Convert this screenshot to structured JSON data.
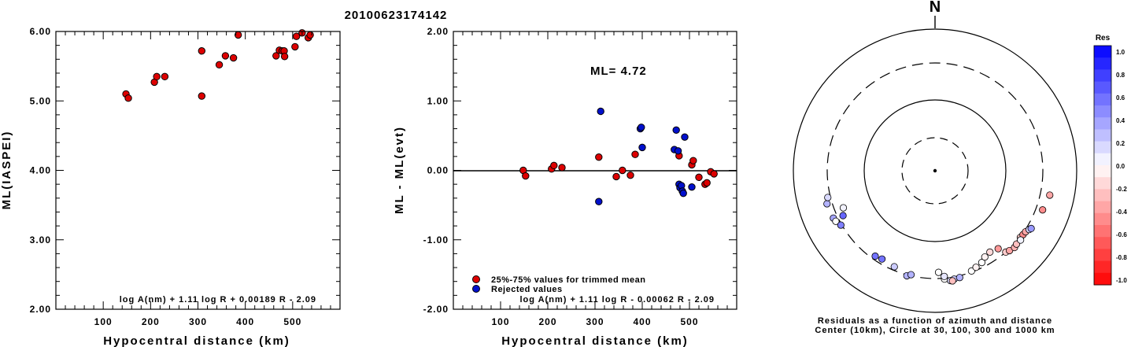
{
  "figure_title": "20100623174142",
  "colors": {
    "accepted": "#dd0000",
    "rejected": "#0010cc",
    "res_positive": "#0000ff",
    "res_negative": "#ff0000"
  },
  "chart_data": [
    {
      "type": "scatter",
      "name": "ML(IASPEI) vs distance",
      "xlabel": "Hypocentral distance (km)",
      "ylabel": "ML(IASPEI)",
      "xlim": [
        0,
        600
      ],
      "ylim": [
        2.0,
        6.0
      ],
      "xticks": [
        "100",
        "200",
        "300",
        "400",
        "500"
      ],
      "yticks": [
        "2.00",
        "3.00",
        "4.00",
        "5.00",
        "6.00"
      ],
      "formula": "log A(nm) + 1.11 log R + 0.00189 R - 2.09",
      "grid": false,
      "series": [
        {
          "color": "accepted",
          "x": [
            148,
            153,
            208,
            213,
            230,
            308,
            308,
            345,
            358,
            375,
            385,
            465,
            472,
            478,
            482,
            483,
            505,
            508,
            520,
            533,
            537
          ],
          "y": [
            5.1,
            5.04,
            5.27,
            5.35,
            5.35,
            5.72,
            5.07,
            5.52,
            5.65,
            5.62,
            5.95,
            5.65,
            5.73,
            5.72,
            5.72,
            5.64,
            5.78,
            5.93,
            5.98,
            5.91,
            5.95
          ]
        }
      ]
    },
    {
      "type": "scatter",
      "name": "Residuals vs distance",
      "xlabel": "Hypocentral distance (km)",
      "ylabel": "ML - ML(evt)",
      "xlim": [
        0,
        600
      ],
      "ylim": [
        -2.0,
        2.0
      ],
      "xticks": [
        "100",
        "200",
        "300",
        "400",
        "500"
      ],
      "yticks": [
        "-2.00",
        "-1.00",
        "0.00",
        "1.00",
        "2.00"
      ],
      "annotation": "ML= 4.72",
      "formula": "log A(nm) + 1.11 log R - 0.00062 R - 2.09",
      "legend": [
        "25%-75% values for trimmed mean",
        "Rejected values"
      ],
      "legend_position": "bottom-left",
      "series": [
        {
          "label_index": 0,
          "color": "accepted",
          "x": [
            148,
            153,
            208,
            213,
            230,
            308,
            345,
            358,
            375,
            385,
            478,
            505,
            508,
            520,
            533,
            537,
            545,
            552
          ],
          "y": [
            0.0,
            -0.08,
            0.02,
            0.07,
            0.04,
            0.19,
            -0.09,
            0.0,
            -0.07,
            0.23,
            0.21,
            0.08,
            0.14,
            -0.1,
            -0.2,
            -0.18,
            -0.02,
            -0.05
          ]
        },
        {
          "label_index": 1,
          "color": "rejected",
          "x": [
            308,
            312,
            396,
            398,
            400,
            468,
            472,
            476,
            478,
            480,
            483,
            485,
            487,
            490,
            505
          ],
          "y": [
            -0.45,
            0.85,
            0.6,
            0.62,
            0.33,
            0.3,
            0.58,
            0.28,
            -0.2,
            -0.25,
            -0.22,
            -0.3,
            -0.33,
            0.48,
            -0.24
          ]
        }
      ]
    },
    {
      "type": "scatter",
      "name": "Residuals by azimuth and distance",
      "north_label": "N",
      "caption_line1": "Residuals as a function of azimuth and distance",
      "caption_line2": "Center (10km), Circle at 30, 100, 300 and 1000 km",
      "rings_km": [
        30,
        100,
        300,
        1000
      ],
      "colorbar_title": "Res",
      "colorbar_ticks": [
        "1.0",
        "0.8",
        "0.6",
        "0.4",
        "0.2",
        "0.0",
        "-0.2",
        "-0.4",
        "-0.6",
        "-0.8",
        "-1.0"
      ],
      "stations": [
        {
          "az": 253,
          "dist": 360,
          "res": 0.3
        },
        {
          "az": 256,
          "dist": 330,
          "res": 0.15
        },
        {
          "az": 245,
          "dist": 350,
          "res": 0.35
        },
        {
          "az": 243,
          "dist": 340,
          "res": 0.0
        },
        {
          "az": 240,
          "dist": 310,
          "res": 0.5
        },
        {
          "az": 244,
          "dist": 255,
          "res": 0.6
        },
        {
          "az": 248,
          "dist": 230,
          "res": 0.05
        },
        {
          "az": 102,
          "dist": 420,
          "res": -0.35
        },
        {
          "az": 110,
          "dist": 380,
          "res": -0.45
        },
        {
          "az": 215,
          "dist": 270,
          "res": 0.55
        },
        {
          "az": 211,
          "dist": 260,
          "res": 0.55
        },
        {
          "az": 203,
          "dist": 270,
          "res": 0.2
        },
        {
          "az": 195,
          "dist": 310,
          "res": 0.3
        },
        {
          "az": 193,
          "dist": 290,
          "res": 0.3
        },
        {
          "az": 178,
          "dist": 250,
          "res": 0.0
        },
        {
          "az": 175,
          "dist": 310,
          "res": 0.0
        },
        {
          "az": 170,
          "dist": 325,
          "res": 0.2
        },
        {
          "az": 172,
          "dist": 335,
          "res": 0.15
        },
        {
          "az": 167,
          "dist": 320,
          "res": 0.3
        },
        {
          "az": 175,
          "dist": 285,
          "res": 0.1
        },
        {
          "az": 171,
          "dist": 342,
          "res": -0.25
        },
        {
          "az": 160,
          "dist": 290,
          "res": 0.0
        },
        {
          "az": 157,
          "dist": 275,
          "res": -0.05
        },
        {
          "az": 153,
          "dist": 260,
          "res": 0.0
        },
        {
          "az": 146,
          "dist": 225,
          "res": -0.15
        },
        {
          "az": 150,
          "dist": 235,
          "res": -0.05
        },
        {
          "az": 141,
          "dist": 240,
          "res": -0.4
        },
        {
          "az": 139,
          "dist": 300,
          "res": -0.2
        },
        {
          "az": 137,
          "dist": 315,
          "res": -0.35
        },
        {
          "az": 134,
          "dist": 330,
          "res": -0.3
        },
        {
          "az": 132,
          "dist": 320,
          "res": -0.25
        },
        {
          "az": 128,
          "dist": 305,
          "res": -0.2
        },
        {
          "az": 126,
          "dist": 310,
          "res": -0.45
        },
        {
          "az": 124,
          "dist": 315,
          "res": -0.35
        },
        {
          "az": 129,
          "dist": 325,
          "res": 0.05
        },
        {
          "az": 122,
          "dist": 335,
          "res": 0.15
        },
        {
          "az": 121,
          "dist": 350,
          "res": 0.4
        }
      ]
    }
  ]
}
